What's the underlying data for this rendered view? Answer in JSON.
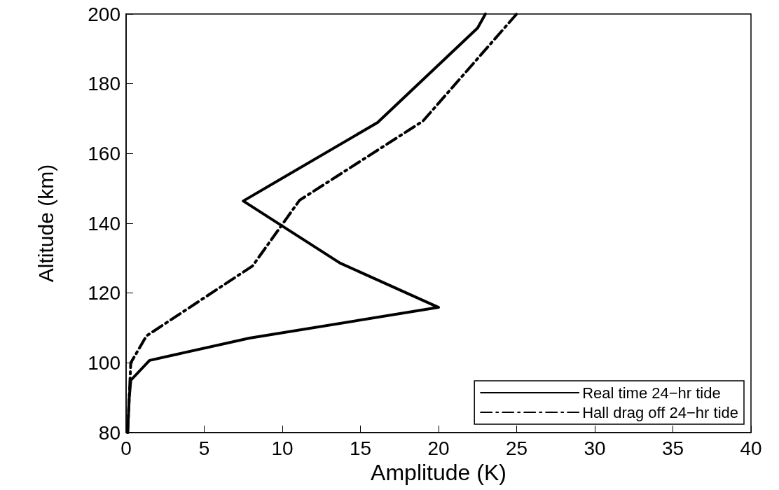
{
  "chart_data": {
    "type": "line",
    "xlabel": "Amplitude (K)",
    "ylabel": "Altitude (km)",
    "xlim": [
      0,
      40
    ],
    "xticks": [
      0,
      5,
      10,
      15,
      20,
      25,
      30,
      35,
      40
    ],
    "ylim": [
      80,
      200
    ],
    "yticks": [
      80,
      100,
      120,
      140,
      160,
      180,
      200
    ],
    "grid": false,
    "legend": "bottom right",
    "marker": "none",
    "series": [
      {
        "name": "Real time 24−hr tide",
        "color": "#000000",
        "line_style": "solid",
        "x": [
          0.1,
          0.2,
          0.3,
          1.5,
          7.9,
          20,
          13.7,
          7.5,
          16.1,
          22.5,
          23
        ],
        "values": [
          80,
          90,
          95,
          100.7,
          107.1,
          115.9,
          128.6,
          146.4,
          168.9,
          196,
          200
        ]
      },
      {
        "name": "Hall drag off 24−hr tide",
        "color": "#000000",
        "line_style": "dashdot",
        "x": [
          0.1,
          0.2,
          0.3,
          1.3,
          8.1,
          11.1,
          19,
          25
        ],
        "values": [
          80,
          90,
          100,
          107.7,
          127.8,
          146.6,
          169.3,
          200
        ]
      }
    ]
  }
}
